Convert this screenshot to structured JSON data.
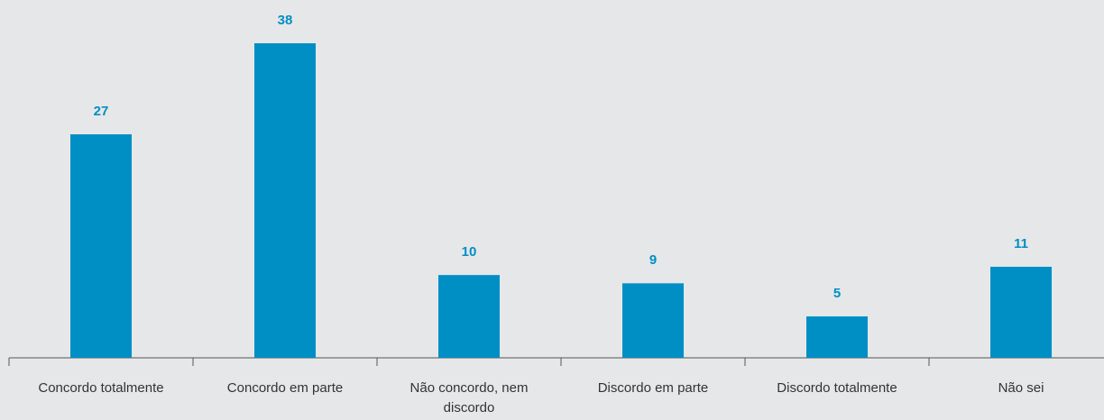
{
  "chart_data": {
    "type": "bar",
    "categories": [
      "Concordo totalmente",
      "Concordo em parte",
      "Não concordo, nem discordo",
      "Discordo em parte",
      "Discordo totalmente",
      "Não sei"
    ],
    "values": [
      27,
      38,
      10,
      9,
      5,
      11
    ],
    "color": "#008fc4"
  }
}
